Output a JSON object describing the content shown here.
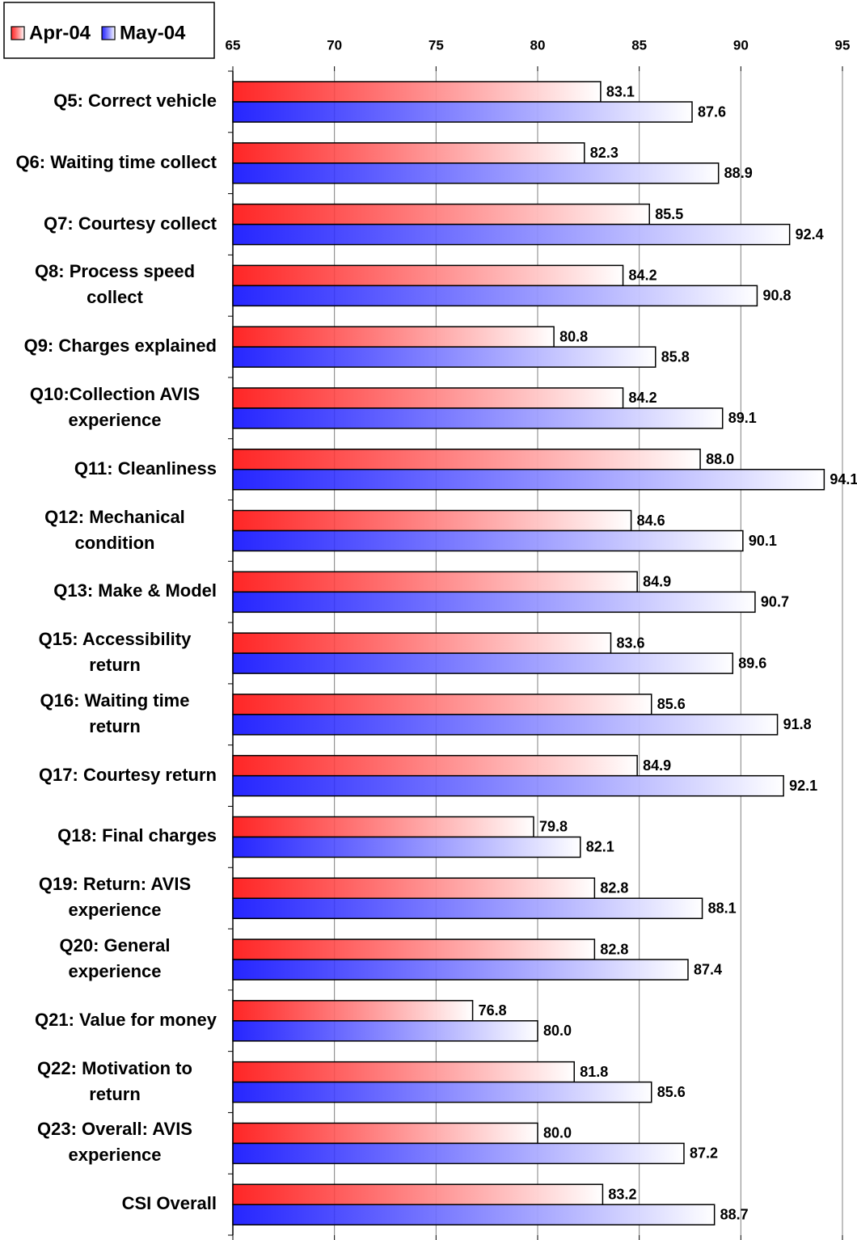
{
  "chart_data": {
    "type": "hbar",
    "categories": [
      "Q5: Correct vehicle",
      "Q6: Waiting time collect",
      "Q7: Courtesy collect",
      "Q8: Process speed collect",
      "Q9: Charges explained",
      "Q10:Collection AVIS experience",
      "Q11: Cleanliness",
      "Q12: Mechanical condition",
      "Q13: Make & Model",
      "Q15: Accessibility return",
      "Q16: Waiting time return",
      "Q17: Courtesy return",
      "Q18: Final charges",
      "Q19: Return: AVIS experience",
      "Q20: General experience",
      "Q21: Value for money",
      "Q22: Motivation to return",
      "Q23: Overall: AVIS experience",
      "CSI Overall"
    ],
    "series": [
      {
        "name": "Apr-04",
        "color": "#ff0000",
        "values": [
          83.1,
          82.3,
          85.5,
          84.2,
          80.8,
          84.2,
          88.0,
          84.6,
          84.9,
          83.6,
          85.6,
          84.9,
          79.8,
          82.8,
          82.8,
          76.8,
          81.8,
          80.0,
          83.2
        ],
        "value_labels": [
          "83.1",
          "82.3",
          "85.5",
          "84.2",
          "80.8",
          "84.2",
          "88.0",
          "84.6",
          "84.9",
          "83.6",
          "85.6",
          "84.9",
          "79.8",
          "82.8",
          "82.8",
          "76.8",
          "81.8",
          "80.0",
          "83.2"
        ]
      },
      {
        "name": "May-04",
        "color": "#0000ff",
        "values": [
          87.6,
          88.9,
          92.4,
          90.8,
          85.8,
          89.1,
          94.1,
          90.1,
          90.7,
          89.6,
          91.8,
          92.1,
          82.1,
          88.1,
          87.4,
          80.0,
          85.6,
          87.2,
          88.7
        ],
        "value_labels": [
          "87.6",
          "88.9",
          "92.4",
          "90.8",
          "85.8",
          "89.1",
          "94.1",
          "90.1",
          "90.7",
          "89.6",
          "91.8",
          "92.1",
          "82.1",
          "88.1",
          "87.4",
          "80.0",
          "85.6",
          "87.2",
          "88.7"
        ]
      }
    ],
    "xlim": [
      65,
      95
    ],
    "xticks": [
      65,
      70,
      75,
      80,
      85,
      90,
      95
    ],
    "grid": true,
    "legend": "top-left"
  }
}
